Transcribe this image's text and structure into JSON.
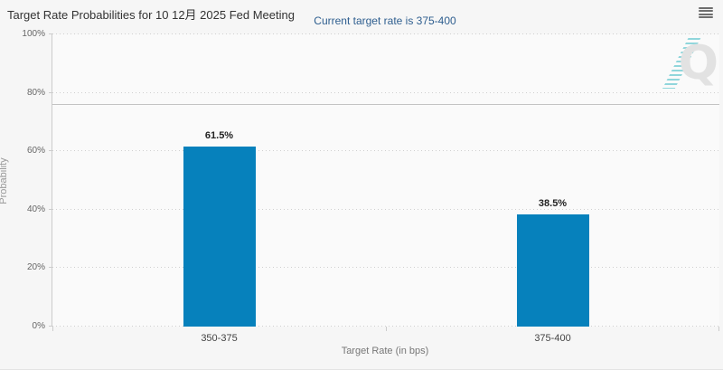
{
  "header": {
    "title": "Target Rate Probabilities for 10 12月 2025 Fed Meeting",
    "menu_icon": "hamburger-menu-icon"
  },
  "chart_data": {
    "type": "bar",
    "title": "Target Rate Probabilities for 10 12月 2025 Fed Meeting",
    "subtitle": "Current target rate is 375-400",
    "categories": [
      "350-375",
      "375-400"
    ],
    "values": [
      61.5,
      38.5
    ],
    "value_labels": [
      "61.5%",
      "38.5%"
    ],
    "xlabel": "Target Rate (in bps)",
    "ylabel": "Probability",
    "ylim": [
      0,
      100
    ],
    "yticks": [
      0,
      20,
      40,
      60,
      80,
      100
    ],
    "ytick_labels": [
      "0%",
      "20%",
      "40%",
      "60%",
      "80%",
      "100%"
    ],
    "grid": "dotted-horizontal",
    "legend": "none",
    "marker_line_pct": 76,
    "bar_color": "#0681bc"
  },
  "colors": {
    "background": "#f6f6f6",
    "plot_background": "#fafafa",
    "bar": "#0681bc",
    "title_text": "#333333",
    "subtitle_text": "#2e5e8f",
    "gridline": "#cfcfcf",
    "marker_line": "#c3c3c3",
    "watermark_letter": "#e2e2e2",
    "watermark_flash": "#7ed0d6"
  },
  "watermark": {
    "letter": "Q"
  }
}
